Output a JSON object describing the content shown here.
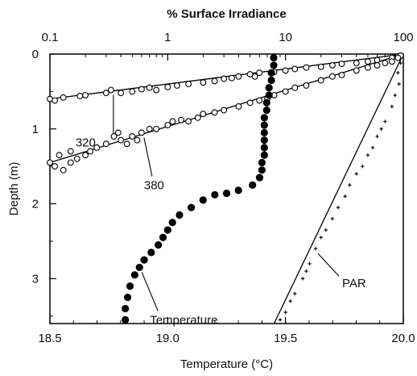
{
  "chart_data": {
    "type": "scatter",
    "title": "% Surface Irradiance",
    "top_axis": {
      "label": "% Surface Irradiance",
      "scale": "log",
      "range": [
        0.1,
        100
      ],
      "ticks": [
        0.1,
        1,
        10,
        100
      ],
      "tick_labels": [
        "0.1",
        "1",
        "10",
        "100"
      ]
    },
    "bottom_axis": {
      "label": "Temperature (°C)",
      "range": [
        18.5,
        20.0
      ],
      "ticks": [
        18.5,
        19.0,
        19.5,
        20.0
      ],
      "tick_labels": [
        "18.5",
        "19.0",
        "19.5",
        "20.0"
      ]
    },
    "left_axis": {
      "label": "Depth (m)",
      "inverted": true,
      "range": [
        0,
        3.6
      ],
      "ticks": [
        0,
        1,
        2,
        3
      ],
      "tick_labels": [
        "0",
        "1",
        "2",
        "3"
      ]
    },
    "grid": false,
    "annotations": [
      {
        "text": "320",
        "series": "320"
      },
      {
        "text": "380",
        "series": "380"
      },
      {
        "text": "Temperature",
        "series": "Temperature"
      },
      {
        "text": "PAR",
        "series": "PAR"
      }
    ],
    "series": [
      {
        "name": "320",
        "axis": "irradiance",
        "marker": "open-circle",
        "fit_line": [
          [
            100,
            0.0
          ],
          [
            0.1,
            0.6
          ]
        ],
        "points": [
          [
            0.1,
            0.6
          ],
          [
            0.11,
            0.62
          ],
          [
            0.13,
            0.58
          ],
          [
            0.18,
            0.56
          ],
          [
            0.2,
            0.55
          ],
          [
            0.3,
            0.52
          ],
          [
            0.33,
            0.48
          ],
          [
            0.4,
            0.52
          ],
          [
            0.5,
            0.5
          ],
          [
            0.6,
            0.47
          ],
          [
            0.7,
            0.45
          ],
          [
            0.8,
            0.48
          ],
          [
            1.0,
            0.44
          ],
          [
            1.2,
            0.42
          ],
          [
            1.5,
            0.4
          ],
          [
            2.0,
            0.38
          ],
          [
            2.5,
            0.36
          ],
          [
            3.0,
            0.33
          ],
          [
            3.5,
            0.32
          ],
          [
            4.0,
            0.3
          ],
          [
            5.0,
            0.27
          ],
          [
            5.5,
            0.3
          ],
          [
            6.0,
            0.25
          ],
          [
            8.0,
            0.24
          ],
          [
            10.0,
            0.22
          ],
          [
            12.0,
            0.2
          ],
          [
            15.0,
            0.18
          ],
          [
            20.0,
            0.17
          ],
          [
            25.0,
            0.15
          ],
          [
            30.0,
            0.13
          ],
          [
            40.0,
            0.12
          ],
          [
            50.0,
            0.1
          ],
          [
            60.0,
            0.08
          ],
          [
            80.0,
            0.05
          ],
          [
            90.0,
            0.03
          ],
          [
            95.0,
            0.02
          ]
        ]
      },
      {
        "name": "380",
        "axis": "irradiance",
        "marker": "open-circle",
        "fit_line": [
          [
            100,
            0.0
          ],
          [
            0.1,
            1.45
          ]
        ],
        "points": [
          [
            0.1,
            1.45
          ],
          [
            0.11,
            1.5
          ],
          [
            0.12,
            1.35
          ],
          [
            0.13,
            1.55
          ],
          [
            0.15,
            1.45
          ],
          [
            0.15,
            1.3
          ],
          [
            0.17,
            1.4
          ],
          [
            0.2,
            1.35
          ],
          [
            0.22,
            1.3
          ],
          [
            0.25,
            1.25
          ],
          [
            0.3,
            1.2
          ],
          [
            0.35,
            1.1
          ],
          [
            0.38,
            1.05
          ],
          [
            0.4,
            1.15
          ],
          [
            0.45,
            1.2
          ],
          [
            0.5,
            1.1
          ],
          [
            0.55,
            1.15
          ],
          [
            0.6,
            1.05
          ],
          [
            0.7,
            1.0
          ],
          [
            0.8,
            1.0
          ],
          [
            1.0,
            0.95
          ],
          [
            1.1,
            0.9
          ],
          [
            1.3,
            0.88
          ],
          [
            1.5,
            0.9
          ],
          [
            1.8,
            0.85
          ],
          [
            2.0,
            0.8
          ],
          [
            2.5,
            0.78
          ],
          [
            3.0,
            0.75
          ],
          [
            4.0,
            0.7
          ],
          [
            5.0,
            0.65
          ],
          [
            6.0,
            0.62
          ],
          [
            7.0,
            0.6
          ],
          [
            8.0,
            0.55
          ],
          [
            10.0,
            0.5
          ],
          [
            12.0,
            0.45
          ],
          [
            15.0,
            0.42
          ],
          [
            20.0,
            0.35
          ],
          [
            25.0,
            0.3
          ],
          [
            30.0,
            0.28
          ],
          [
            40.0,
            0.22
          ],
          [
            50.0,
            0.18
          ],
          [
            60.0,
            0.15
          ],
          [
            70.0,
            0.12
          ],
          [
            80.0,
            0.1
          ],
          [
            90.0,
            0.05
          ]
        ]
      },
      {
        "name": "PAR",
        "axis": "irradiance",
        "marker": "small-plus",
        "fit_line": [
          [
            100,
            0.0
          ],
          [
            8.0,
            3.6
          ]
        ],
        "points": [
          [
            95,
            0.12
          ],
          [
            90,
            0.25
          ],
          [
            92,
            0.4
          ],
          [
            85,
            0.55
          ],
          [
            80,
            0.7
          ],
          [
            70,
            0.9
          ],
          [
            60,
            1.1
          ],
          [
            65,
            1.0
          ],
          [
            55,
            1.25
          ],
          [
            50,
            1.35
          ],
          [
            45,
            1.5
          ],
          [
            40,
            1.6
          ],
          [
            35,
            1.75
          ],
          [
            32,
            1.9
          ],
          [
            28,
            2.05
          ],
          [
            25,
            2.2
          ],
          [
            22,
            2.35
          ],
          [
            20,
            2.45
          ],
          [
            18,
            2.6
          ],
          [
            16,
            2.8
          ],
          [
            15,
            2.9
          ],
          [
            14,
            3.0
          ],
          [
            12,
            3.2
          ],
          [
            11,
            3.3
          ],
          [
            10,
            3.45
          ],
          [
            9,
            3.55
          ]
        ]
      },
      {
        "name": "Temperature",
        "axis": "temperature",
        "marker": "filled-circle",
        "points": [
          [
            19.45,
            0.05
          ],
          [
            19.45,
            0.15
          ],
          [
            19.44,
            0.25
          ],
          [
            19.44,
            0.35
          ],
          [
            19.43,
            0.45
          ],
          [
            19.43,
            0.55
          ],
          [
            19.42,
            0.65
          ],
          [
            19.42,
            0.75
          ],
          [
            19.41,
            0.85
          ],
          [
            19.41,
            0.95
          ],
          [
            19.41,
            1.05
          ],
          [
            19.41,
            1.15
          ],
          [
            19.41,
            1.25
          ],
          [
            19.41,
            1.35
          ],
          [
            19.4,
            1.45
          ],
          [
            19.4,
            1.55
          ],
          [
            19.39,
            1.65
          ],
          [
            19.36,
            1.75
          ],
          [
            19.3,
            1.82
          ],
          [
            19.25,
            1.86
          ],
          [
            19.2,
            1.88
          ],
          [
            19.15,
            1.95
          ],
          [
            19.1,
            2.05
          ],
          [
            19.05,
            2.15
          ],
          [
            19.02,
            2.25
          ],
          [
            19.0,
            2.35
          ],
          [
            18.98,
            2.45
          ],
          [
            18.96,
            2.55
          ],
          [
            18.93,
            2.65
          ],
          [
            18.9,
            2.75
          ],
          [
            18.88,
            2.85
          ],
          [
            18.86,
            2.95
          ],
          [
            18.84,
            3.1
          ],
          [
            18.83,
            3.25
          ],
          [
            18.82,
            3.4
          ],
          [
            18.82,
            3.55
          ]
        ]
      }
    ]
  }
}
